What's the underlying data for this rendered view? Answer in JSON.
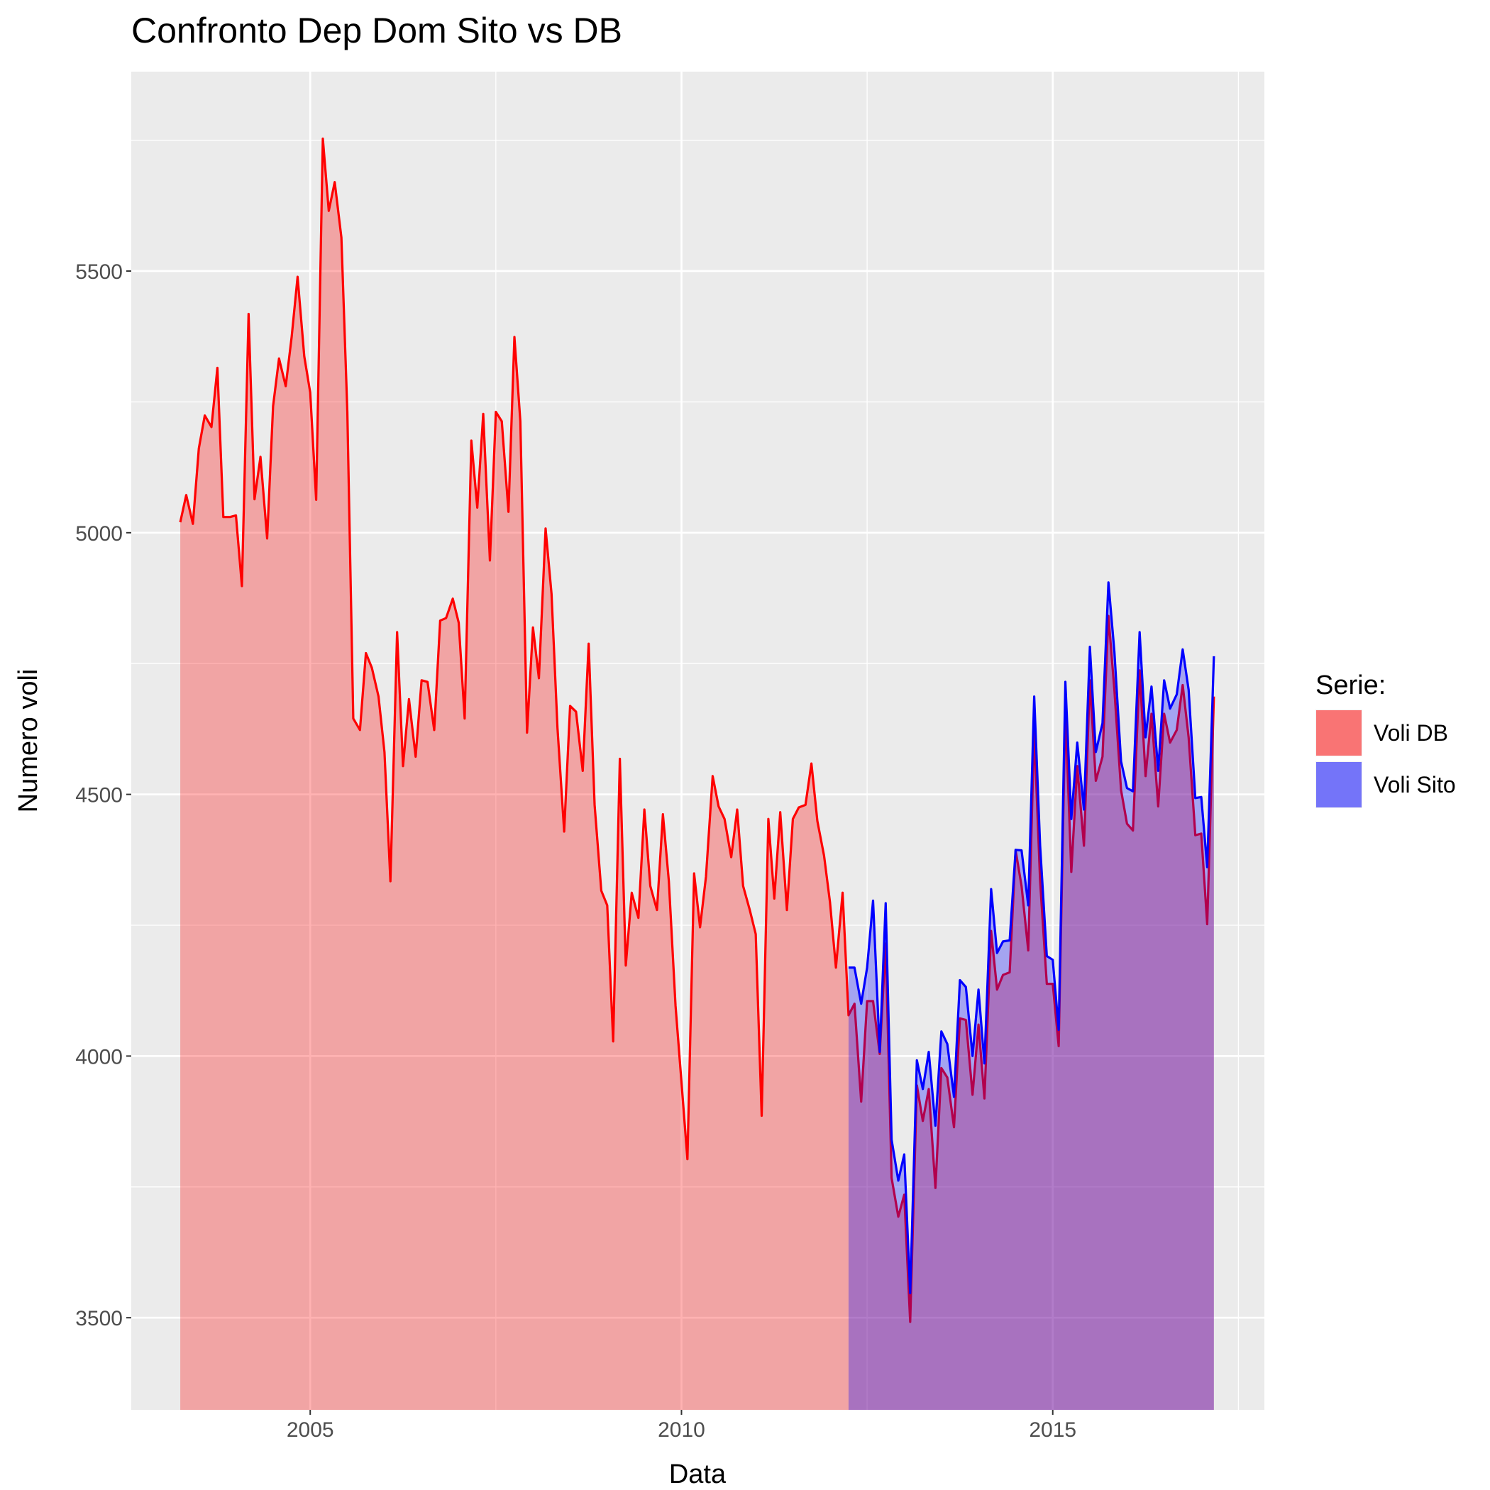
{
  "chart_data": {
    "type": "area",
    "title": "Confronto Dep Dom Sito vs DB",
    "x_label": "Data",
    "y_label": "Numero voli",
    "legend_title": "Serie:",
    "legend": "right",
    "grid": true,
    "xlim": [
      2002.59,
      2017.85
    ],
    "ylim": [
      3324,
      5881
    ],
    "xticks": [
      2005,
      2010,
      2015
    ],
    "yticks": [
      3500,
      4000,
      4500,
      5000,
      5500
    ],
    "xminor": [
      2007.5,
      2012.5,
      2017.5
    ],
    "yminor": [
      3750,
      4250,
      4750,
      5250,
      5750
    ],
    "x": [
      2003.25,
      2003.33,
      2003.42,
      2003.5,
      2003.58,
      2003.67,
      2003.75,
      2003.83,
      2003.92,
      2004,
      2004.08,
      2004.17,
      2004.25,
      2004.33,
      2004.42,
      2004.5,
      2004.58,
      2004.67,
      2004.75,
      2004.83,
      2004.92,
      2005,
      2005.08,
      2005.17,
      2005.25,
      2005.33,
      2005.42,
      2005.5,
      2005.58,
      2005.67,
      2005.75,
      2005.83,
      2005.92,
      2006,
      2006.08,
      2006.17,
      2006.25,
      2006.33,
      2006.42,
      2006.5,
      2006.58,
      2006.67,
      2006.75,
      2006.83,
      2006.92,
      2007,
      2007.08,
      2007.17,
      2007.25,
      2007.33,
      2007.42,
      2007.5,
      2007.58,
      2007.67,
      2007.75,
      2007.83,
      2007.92,
      2008,
      2008.08,
      2008.17,
      2008.25,
      2008.33,
      2008.42,
      2008.5,
      2008.58,
      2008.67,
      2008.75,
      2008.83,
      2008.92,
      2009,
      2009.08,
      2009.17,
      2009.25,
      2009.33,
      2009.42,
      2009.5,
      2009.58,
      2009.67,
      2009.75,
      2009.83,
      2009.92,
      2010,
      2010.08,
      2010.17,
      2010.25,
      2010.33,
      2010.42,
      2010.5,
      2010.58,
      2010.67,
      2010.75,
      2010.83,
      2010.92,
      2011,
      2011.08,
      2011.17,
      2011.25,
      2011.33,
      2011.42,
      2011.5,
      2011.58,
      2011.67,
      2011.75,
      2011.83,
      2011.92,
      2012,
      2012.08,
      2012.17,
      2012.25,
      2012.33,
      2012.42,
      2012.5,
      2012.58,
      2012.67,
      2012.75,
      2012.83,
      2012.92,
      2013,
      2013.08,
      2013.17,
      2013.25,
      2013.33,
      2013.42,
      2013.5,
      2013.58,
      2013.67,
      2013.75,
      2013.83,
      2013.92,
      2014,
      2014.08,
      2014.17,
      2014.25,
      2014.33,
      2014.42,
      2014.5,
      2014.58,
      2014.67,
      2014.75,
      2014.83,
      2014.92,
      2015,
      2015.08,
      2015.17,
      2015.25,
      2015.33,
      2015.42,
      2015.5,
      2015.58,
      2015.67,
      2015.75,
      2015.83,
      2015.92,
      2016,
      2016.08,
      2016.17,
      2016.25,
      2016.33,
      2016.42,
      2016.5,
      2016.58,
      2016.67,
      2016.75,
      2016.83,
      2016.92,
      2017,
      2017.08,
      2017.17
    ],
    "series": [
      {
        "name": "Voli DB",
        "color": "#ff0000",
        "values": [
          5020,
          5072,
          5017,
          5161,
          5224,
          5202,
          5315,
          5030,
          5030,
          5033,
          4898,
          5418,
          5064,
          5145,
          4989,
          5242,
          5333,
          5280,
          5374,
          5489,
          5337,
          5268,
          5063,
          5753,
          5615,
          5670,
          5564,
          5231,
          4645,
          4623,
          4770,
          4742,
          4687,
          4581,
          4334,
          4810,
          4554,
          4682,
          4572,
          4718,
          4715,
          4623,
          4832,
          4837,
          4874,
          4828,
          4645,
          5176,
          5048,
          5227,
          4947,
          5231,
          5213,
          5040,
          5374,
          5213,
          4618,
          4819,
          4722,
          5008,
          4883,
          4627,
          4429,
          4669,
          4658,
          4545,
          4788,
          4480,
          4316,
          4288,
          4028,
          4568,
          4173,
          4312,
          4264,
          4471,
          4325,
          4279,
          4462,
          4334,
          4096,
          3950,
          3803,
          4349,
          4246,
          4343,
          4535,
          4477,
          4453,
          4380,
          4471,
          4325,
          4279,
          4233,
          3886,
          4453,
          4301,
          4466,
          4279,
          4453,
          4475,
          4480,
          4559,
          4449,
          4383,
          4294,
          4169,
          4312,
          4078,
          4100,
          3913,
          4105,
          4105,
          4004,
          4215,
          3767,
          3693,
          3735,
          3492,
          3944,
          3876,
          3937,
          3748,
          3977,
          3959,
          3864,
          4072,
          4069,
          3926,
          4060,
          3919,
          4239,
          4127,
          4155,
          4160,
          4393,
          4325,
          4202,
          4623,
          4334,
          4138,
          4138,
          4019,
          4664,
          4352,
          4554,
          4402,
          4718,
          4526,
          4572,
          4841,
          4700,
          4508,
          4444,
          4431,
          4737,
          4535,
          4654,
          4477,
          4654,
          4599,
          4623,
          4709,
          4609,
          4422,
          4425,
          4252,
          4687
        ]
      },
      {
        "name": "Voli Sito",
        "color": "#0000ff",
        "values": [
          null,
          null,
          null,
          null,
          null,
          null,
          null,
          null,
          null,
          null,
          null,
          null,
          null,
          null,
          null,
          null,
          null,
          null,
          null,
          null,
          null,
          null,
          null,
          null,
          null,
          null,
          null,
          null,
          null,
          null,
          null,
          null,
          null,
          null,
          null,
          null,
          null,
          null,
          null,
          null,
          null,
          null,
          null,
          null,
          null,
          null,
          null,
          null,
          null,
          null,
          null,
          null,
          null,
          null,
          null,
          null,
          null,
          null,
          null,
          null,
          null,
          null,
          null,
          null,
          null,
          null,
          null,
          null,
          null,
          null,
          null,
          null,
          null,
          null,
          null,
          null,
          null,
          null,
          null,
          null,
          null,
          null,
          null,
          null,
          null,
          null,
          null,
          null,
          null,
          null,
          null,
          null,
          null,
          null,
          null,
          null,
          null,
          null,
          null,
          null,
          null,
          null,
          null,
          null,
          null,
          null,
          null,
          null,
          4169,
          4169,
          4100,
          4169,
          4297,
          4008,
          4292,
          3840,
          3762,
          3812,
          3547,
          3992,
          3937,
          4008,
          3867,
          4047,
          4023,
          3922,
          4145,
          4132,
          4000,
          4127,
          3986,
          4319,
          4197,
          4219,
          4221,
          4394,
          4393,
          4288,
          4687,
          4402,
          4191,
          4184,
          4050,
          4715,
          4453,
          4599,
          4471,
          4782,
          4581,
          4636,
          4905,
          4773,
          4563,
          4512,
          4506,
          4810,
          4609,
          4706,
          4545,
          4718,
          4664,
          4691,
          4777,
          4700,
          4493,
          4495,
          4361,
          4764
        ]
      }
    ]
  }
}
